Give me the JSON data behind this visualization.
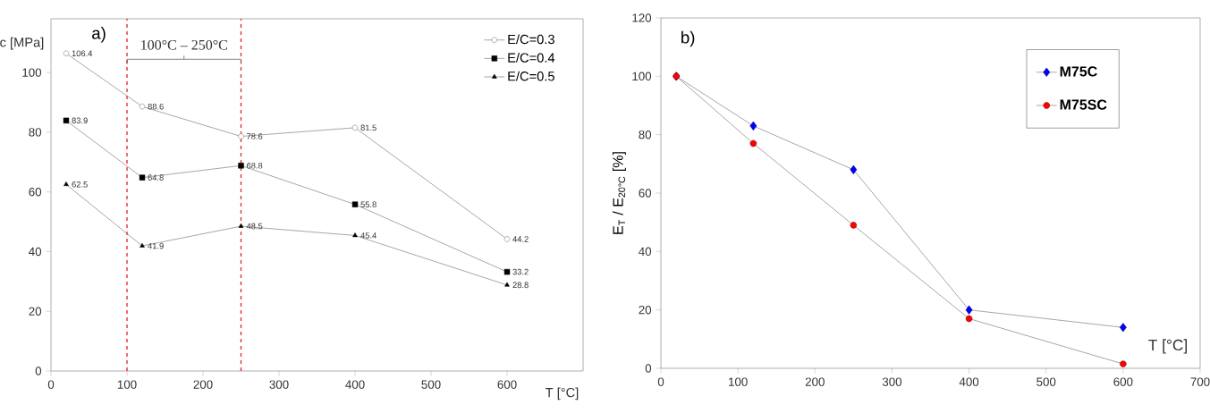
{
  "chart_data": [
    {
      "type": "line",
      "ylabel": "c [MPa]",
      "xlabel": "T [°C]",
      "annotations": [
        "a)",
        "100°C – 250°C"
      ],
      "x": [
        20,
        120,
        250,
        400,
        600
      ],
      "series": [
        {
          "name": "E/C=0.3",
          "color": "#ffffff",
          "marker": "circle",
          "values": [
            106.4,
            88.6,
            78.6,
            81.5,
            44.2
          ]
        },
        {
          "name": "E/C=0.4",
          "color": "#000000",
          "marker": "square",
          "values": [
            83.9,
            64.8,
            68.8,
            55.8,
            33.2
          ]
        },
        {
          "name": "E/C=0.5",
          "color": "#000000",
          "marker": "triangle",
          "values": [
            62.5,
            41.9,
            48.5,
            45.4,
            28.8
          ]
        }
      ],
      "xlim": [
        0,
        700
      ],
      "xticks": [
        0,
        100,
        200,
        300,
        400,
        500,
        600
      ],
      "ylim": [
        0,
        118
      ],
      "yticks": [
        0,
        20,
        40,
        60,
        80,
        100
      ],
      "ref_lines": [
        {
          "axis": "x",
          "value": 100,
          "color": "#e8262b",
          "line_style": "dashed"
        },
        {
          "axis": "x",
          "value": 250,
          "color": "#e8262b",
          "line_style": "dashed"
        }
      ],
      "data_labels": true,
      "legend": "top right",
      "line_style": "solid"
    },
    {
      "type": "line",
      "ylabel": "E$_{T}$ / E$_{20°C}$ [%]",
      "xlabel": "T [°C]",
      "annotations": [
        "b)"
      ],
      "x": [
        20,
        120,
        250,
        400,
        600
      ],
      "series": [
        {
          "name": "M75C",
          "color": "#0000ff",
          "marker": "diamond",
          "values": [
            100,
            83,
            68,
            20,
            14
          ]
        },
        {
          "name": "M75SC",
          "color": "#ff0000",
          "marker": "circle",
          "values": [
            100,
            77,
            49,
            17,
            1.5
          ]
        }
      ],
      "xlim": [
        0,
        700
      ],
      "xticks": [
        0,
        100,
        200,
        300,
        400,
        500,
        600,
        700
      ],
      "ylim": [
        0,
        120
      ],
      "yticks": [
        0,
        20,
        40,
        60,
        80,
        100,
        120
      ],
      "legend": "top right",
      "line_style": "solid"
    }
  ]
}
